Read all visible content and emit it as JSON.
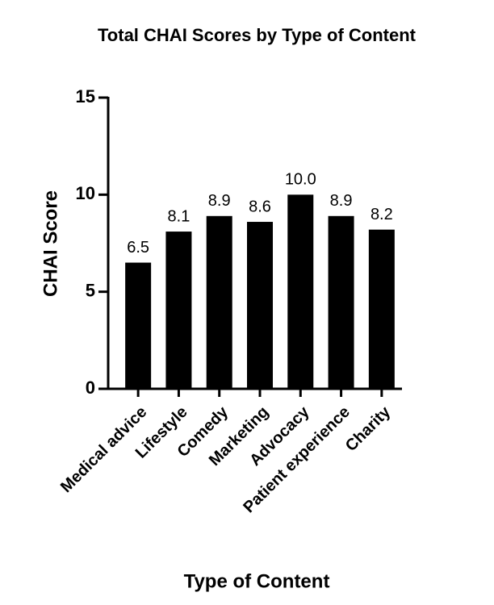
{
  "chart_data": {
    "type": "bar",
    "title": "Total CHAI Scores by Type of Content",
    "x_label": "Type of Content",
    "y_label": "CHAI Score",
    "categories": [
      "Medical advice",
      "Lifestyle",
      "Comedy",
      "Marketing",
      "Advocacy",
      "Patient experience",
      "Charity"
    ],
    "values": [
      6.5,
      8.1,
      8.9,
      8.6,
      10.0,
      8.9,
      8.2
    ],
    "value_labels": [
      "6.5",
      "8.1",
      "8.9",
      "8.6",
      "10.0",
      "8.9",
      "8.2"
    ],
    "color": "#000000",
    "ylim": [
      0,
      15
    ],
    "yticks": [
      0,
      5,
      10,
      15
    ],
    "grid": false
  }
}
